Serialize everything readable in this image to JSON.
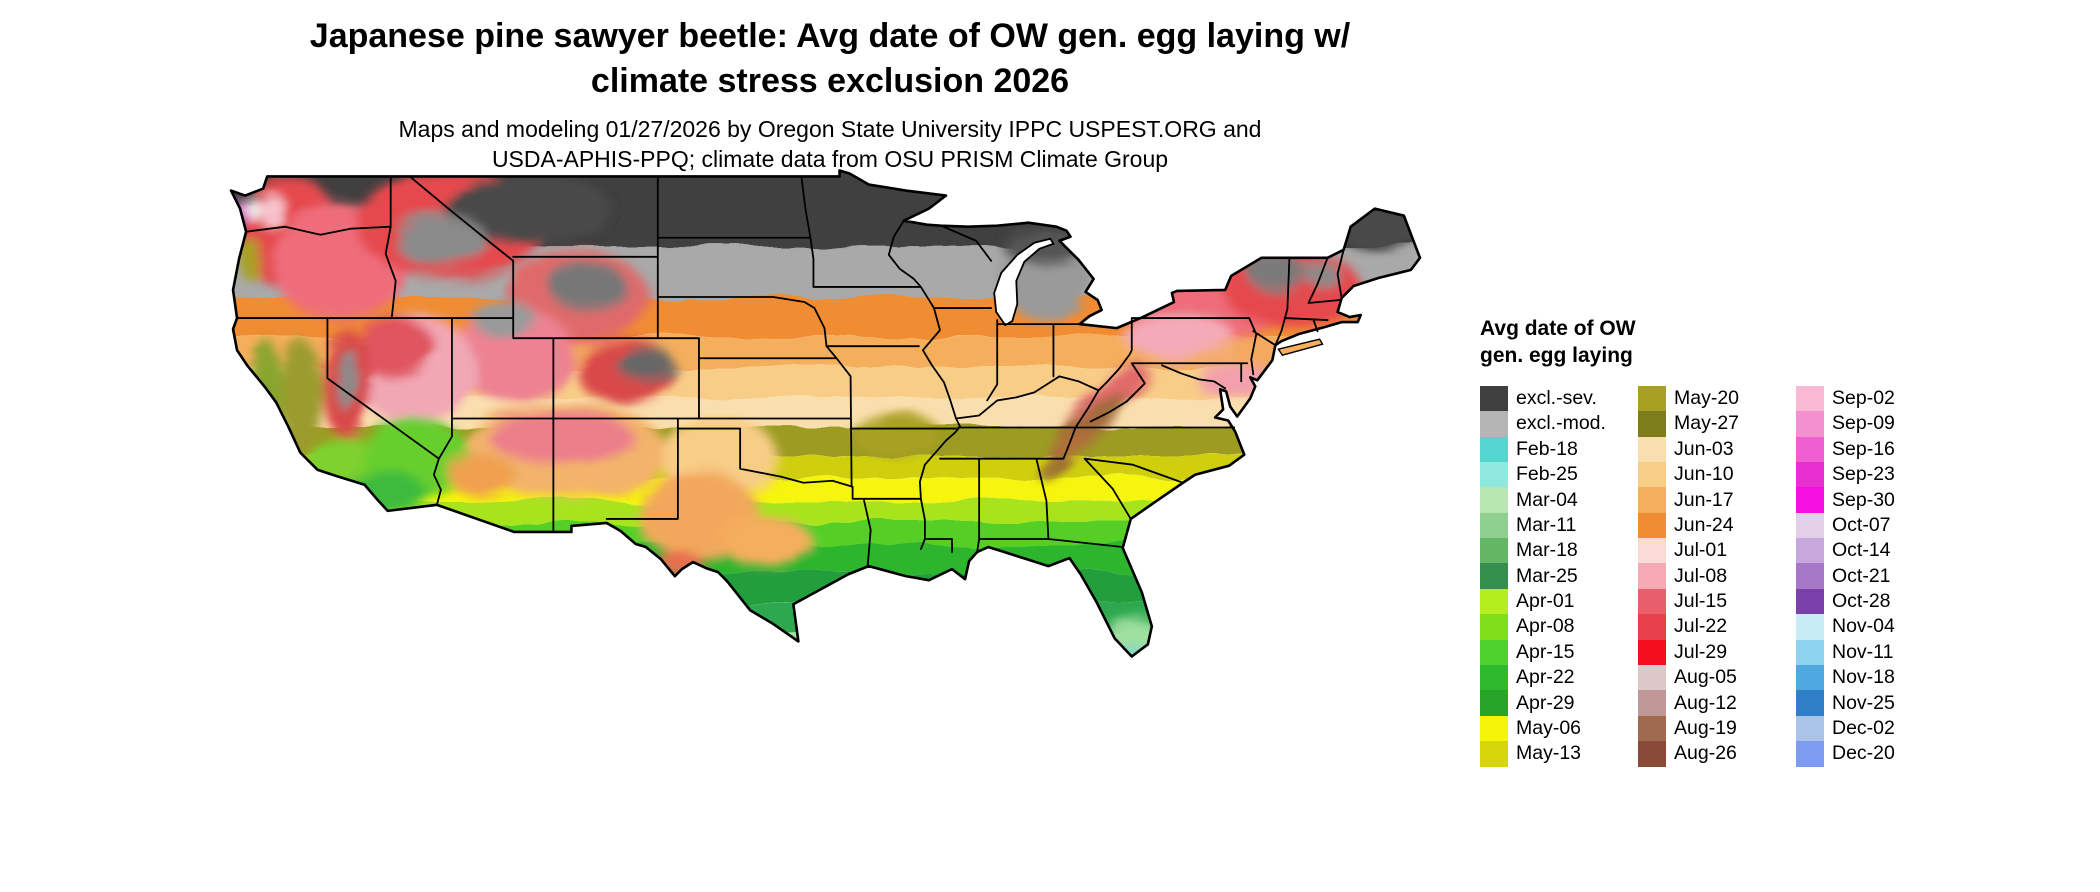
{
  "title": {
    "line1": "Japanese pine sawyer beetle: Avg date of OW gen. egg laying w/",
    "line2": "climate stress exclusion 2026"
  },
  "subtitle": {
    "line1": "Maps and modeling 01/27/2026 by Oregon State University IPPC USPEST.ORG and",
    "line2": "USDA-APHIS-PPQ; climate data from OSU PRISM Climate Group"
  },
  "legend": {
    "title_line1": "Avg date of OW",
    "title_line2": "gen. egg laying",
    "columns": [
      {
        "entries": [
          {
            "label": "excl.-sev.",
            "color": "#3f3f3f"
          },
          {
            "label": "excl.-mod.",
            "color": "#b5b5b5"
          },
          {
            "label": "Feb-18",
            "color": "#52d6cf"
          },
          {
            "label": "Feb-25",
            "color": "#8ee8dd"
          },
          {
            "label": "Mar-04",
            "color": "#b8e6b0"
          },
          {
            "label": "Mar-11",
            "color": "#8fcf8f"
          },
          {
            "label": "Mar-18",
            "color": "#63b663"
          },
          {
            "label": "Mar-25",
            "color": "#348f4d"
          },
          {
            "label": "Apr-01",
            "color": "#b5ee1e"
          },
          {
            "label": "Apr-08",
            "color": "#7fe019"
          },
          {
            "label": "Apr-15",
            "color": "#4fd12e"
          },
          {
            "label": "Apr-22",
            "color": "#2dbb2d"
          },
          {
            "label": "Apr-29",
            "color": "#28a428"
          },
          {
            "label": "May-06",
            "color": "#f5f50a"
          },
          {
            "label": "May-13",
            "color": "#d6d60a"
          }
        ]
      },
      {
        "entries": [
          {
            "label": "May-20",
            "color": "#a8a023"
          },
          {
            "label": "May-27",
            "color": "#7d7d1c"
          },
          {
            "label": "Jun-03",
            "color": "#fadfae"
          },
          {
            "label": "Jun-10",
            "color": "#f8cd87"
          },
          {
            "label": "Jun-17",
            "color": "#f5ae5c"
          },
          {
            "label": "Jun-24",
            "color": "#f08c33"
          },
          {
            "label": "Jul-01",
            "color": "#fadbd5"
          },
          {
            "label": "Jul-08",
            "color": "#f5aab4"
          },
          {
            "label": "Jul-15",
            "color": "#e85f6b"
          },
          {
            "label": "Jul-22",
            "color": "#e8414b"
          },
          {
            "label": "Jul-29",
            "color": "#f50f1e"
          },
          {
            "label": "Aug-05",
            "color": "#dcc8c8"
          },
          {
            "label": "Aug-12",
            "color": "#c09898"
          },
          {
            "label": "Aug-19",
            "color": "#a06a50"
          },
          {
            "label": "Aug-26",
            "color": "#8a4a38"
          }
        ]
      },
      {
        "entries": [
          {
            "label": "Sep-02",
            "color": "#f9b8d4"
          },
          {
            "label": "Sep-09",
            "color": "#f48fd0"
          },
          {
            "label": "Sep-16",
            "color": "#ef5fd2"
          },
          {
            "label": "Sep-23",
            "color": "#e82fd0"
          },
          {
            "label": "Sep-30",
            "color": "#f50fe0"
          },
          {
            "label": "Oct-07",
            "color": "#e3cfe8"
          },
          {
            "label": "Oct-14",
            "color": "#c8a8dc"
          },
          {
            "label": "Oct-21",
            "color": "#a878c8"
          },
          {
            "label": "Oct-28",
            "color": "#7a3fa8"
          },
          {
            "label": "Nov-04",
            "color": "#c8ecf5"
          },
          {
            "label": "Nov-11",
            "color": "#8fd4ee"
          },
          {
            "label": "Nov-18",
            "color": "#4fa8e0"
          },
          {
            "label": "Nov-25",
            "color": "#2f7fc8"
          },
          {
            "label": "Dec-02",
            "color": "#aac4e8"
          },
          {
            "label": "Dec-20",
            "color": "#7d9bf0"
          }
        ]
      }
    ]
  }
}
